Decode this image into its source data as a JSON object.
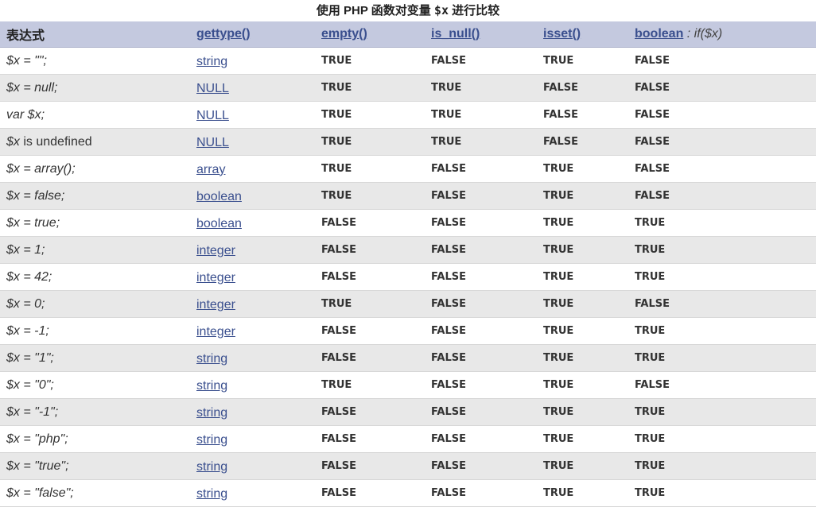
{
  "caption": {
    "prefix": "使用 PHP 函数对变量 ",
    "var": "$x",
    "suffix": " 进行比较"
  },
  "columns": {
    "expr": "表达式",
    "gettype": "gettype()",
    "empty": "empty()",
    "is_null": "is_null()",
    "isset": "isset()",
    "boolean": "boolean",
    "boolean_cond": " : if($x)"
  },
  "rows": [
    {
      "expr": "$x = \"\";",
      "type": "string",
      "empty": "TRUE",
      "is_null": "FALSE",
      "isset": "TRUE",
      "boolean": "FALSE"
    },
    {
      "expr": "$x = null;",
      "type": "NULL",
      "empty": "TRUE",
      "is_null": "TRUE",
      "isset": "FALSE",
      "boolean": "FALSE"
    },
    {
      "expr": "var $x;",
      "type": "NULL",
      "empty": "TRUE",
      "is_null": "TRUE",
      "isset": "FALSE",
      "boolean": "FALSE"
    },
    {
      "expr": "$x is undefined",
      "type": "NULL",
      "empty": "TRUE",
      "is_null": "TRUE",
      "isset": "FALSE",
      "boolean": "FALSE"
    },
    {
      "expr": "$x = array();",
      "type": "array",
      "empty": "TRUE",
      "is_null": "FALSE",
      "isset": "TRUE",
      "boolean": "FALSE"
    },
    {
      "expr": "$x = false;",
      "type": "boolean",
      "empty": "TRUE",
      "is_null": "FALSE",
      "isset": "TRUE",
      "boolean": "FALSE"
    },
    {
      "expr": "$x = true;",
      "type": "boolean",
      "empty": "FALSE",
      "is_null": "FALSE",
      "isset": "TRUE",
      "boolean": "TRUE"
    },
    {
      "expr": "$x = 1;",
      "type": "integer",
      "empty": "FALSE",
      "is_null": "FALSE",
      "isset": "TRUE",
      "boolean": "TRUE"
    },
    {
      "expr": "$x = 42;",
      "type": "integer",
      "empty": "FALSE",
      "is_null": "FALSE",
      "isset": "TRUE",
      "boolean": "TRUE"
    },
    {
      "expr": "$x = 0;",
      "type": "integer",
      "empty": "TRUE",
      "is_null": "FALSE",
      "isset": "TRUE",
      "boolean": "FALSE"
    },
    {
      "expr": "$x = -1;",
      "type": "integer",
      "empty": "FALSE",
      "is_null": "FALSE",
      "isset": "TRUE",
      "boolean": "TRUE"
    },
    {
      "expr": "$x = \"1\";",
      "type": "string",
      "empty": "FALSE",
      "is_null": "FALSE",
      "isset": "TRUE",
      "boolean": "TRUE"
    },
    {
      "expr": "$x = \"0\";",
      "type": "string",
      "empty": "TRUE",
      "is_null": "FALSE",
      "isset": "TRUE",
      "boolean": "FALSE"
    },
    {
      "expr": "$x = \"-1\";",
      "type": "string",
      "empty": "FALSE",
      "is_null": "FALSE",
      "isset": "TRUE",
      "boolean": "TRUE"
    },
    {
      "expr": "$x = \"php\";",
      "type": "string",
      "empty": "FALSE",
      "is_null": "FALSE",
      "isset": "TRUE",
      "boolean": "TRUE"
    },
    {
      "expr": "$x = \"true\";",
      "type": "string",
      "empty": "FALSE",
      "is_null": "FALSE",
      "isset": "TRUE",
      "boolean": "TRUE"
    },
    {
      "expr": "$x = \"false\";",
      "type": "string",
      "empty": "FALSE",
      "is_null": "FALSE",
      "isset": "TRUE",
      "boolean": "TRUE"
    }
  ],
  "colors": {
    "header_bg": "#c4c9df",
    "link": "#3a4f8e",
    "row_alt": "#e8e8e8"
  }
}
